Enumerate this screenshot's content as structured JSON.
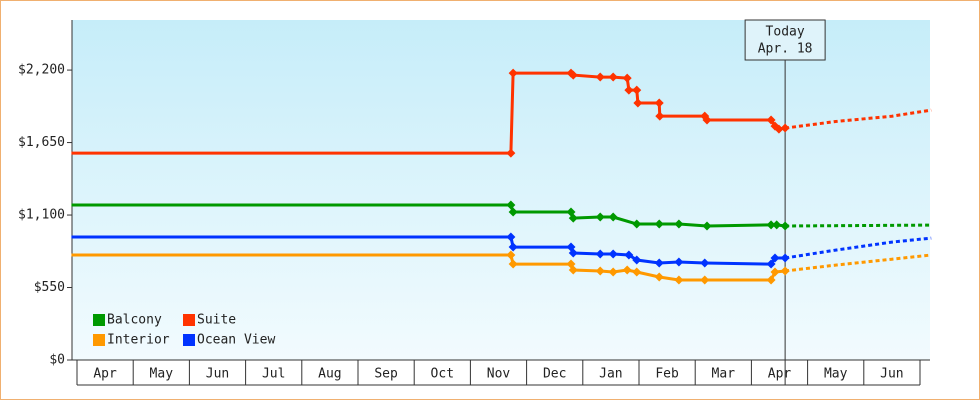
{
  "chart_data": {
    "type": "line",
    "xlim": [
      -0.1,
      15.2
    ],
    "ylim": [
      0,
      2580
    ],
    "yticks": [
      {
        "value": 0,
        "label": "$0"
      },
      {
        "value": 550,
        "label": "$550"
      },
      {
        "value": 1100,
        "label": "$1,100"
      },
      {
        "value": 1650,
        "label": "$1,650"
      },
      {
        "value": 2200,
        "label": "$2,200"
      }
    ],
    "x_categories": [
      "Apr",
      "May",
      "Jun",
      "Jul",
      "Aug",
      "Sep",
      "Oct",
      "Nov",
      "Dec",
      "Jan",
      "Feb",
      "Mar",
      "Apr",
      "May",
      "Jun"
    ],
    "today": {
      "x": 12.6,
      "label": "Today",
      "date": "Apr. 18"
    },
    "legend": "bottom-left",
    "series": [
      {
        "name": "Balcony",
        "color": "#009900",
        "x": [
          -0.1,
          7.72,
          7.76,
          8.79,
          8.83,
          9.31,
          9.54,
          9.96,
          10.36,
          10.71,
          11.21,
          12.35,
          12.45,
          12.6
        ],
        "values": [
          1176,
          1176,
          1123,
          1123,
          1077,
          1085,
          1085,
          1032,
          1032,
          1032,
          1017,
          1025,
          1025,
          1017
        ],
        "forecast": {
          "x": [
            12.6,
            15.2
          ],
          "values": [
            1017,
            1024
          ]
        }
      },
      {
        "name": "Suite",
        "color": "#ff3300",
        "x": [
          -0.1,
          7.72,
          7.76,
          8.79,
          8.83,
          9.31,
          9.54,
          9.79,
          9.82,
          9.96,
          9.98,
          10.36,
          10.37,
          11.17,
          11.21,
          12.35,
          12.42,
          12.49,
          12.6
        ],
        "values": [
          1570,
          1570,
          2177,
          2177,
          2162,
          2147,
          2147,
          2139,
          2048,
          2048,
          1950,
          1950,
          1851,
          1851,
          1821,
          1821,
          1775,
          1752,
          1760
        ],
        "forecast": {
          "x": [
            12.6,
            13.5,
            14.5,
            15.2
          ],
          "values": [
            1760,
            1810,
            1850,
            1896
          ]
        }
      },
      {
        "name": "Interior",
        "color": "#ff9900",
        "x": [
          -0.1,
          7.72,
          7.76,
          8.79,
          8.83,
          9.31,
          9.54,
          9.79,
          9.96,
          10.36,
          10.71,
          11.17,
          12.35,
          12.42,
          12.6
        ],
        "values": [
          797,
          797,
          728,
          728,
          683,
          675,
          668,
          683,
          668,
          630,
          607,
          607,
          607,
          668,
          675
        ],
        "forecast": {
          "x": [
            12.6,
            13.5,
            14.5,
            15.2
          ],
          "values": [
            675,
            720,
            765,
            797
          ]
        }
      },
      {
        "name": "Ocean View",
        "color": "#0033ff",
        "x": [
          -0.1,
          7.72,
          7.76,
          8.79,
          8.83,
          9.31,
          9.54,
          9.82,
          9.96,
          10.36,
          10.71,
          11.17,
          12.35,
          12.42,
          12.6
        ],
        "values": [
          933,
          933,
          857,
          857,
          812,
          804,
          804,
          797,
          759,
          736,
          744,
          736,
          728,
          774,
          774
        ],
        "forecast": {
          "x": [
            12.6,
            13.5,
            14.5,
            15.2
          ],
          "values": [
            774,
            834,
            895,
            925
          ]
        }
      }
    ]
  }
}
